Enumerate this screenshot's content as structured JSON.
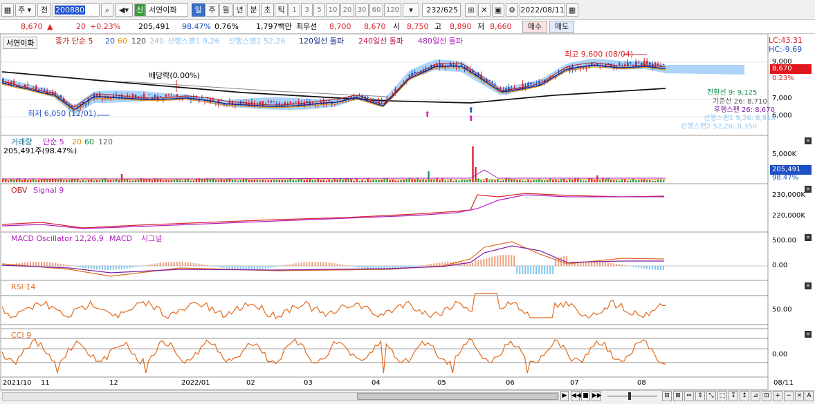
{
  "toolbar": {
    "period_combo": "주",
    "prev_label": "전",
    "code": "200880",
    "flag": "신",
    "stock_name": "서연이화",
    "tf": [
      "일",
      "주",
      "월",
      "년",
      "분",
      "초",
      "틱"
    ],
    "nums": [
      "1",
      "3",
      "5",
      "10",
      "20",
      "30",
      "60",
      "120"
    ],
    "count": "232/625",
    "date": "2022/08/11"
  },
  "quote": {
    "price": "8,670",
    "change": "20",
    "change_pct": "+0.23%",
    "volume": "205,491",
    "vol_ratio": "98.47%",
    "turnover": "0.76%",
    "amount": "1,797백만",
    "best_ask_label": "최우선",
    "best_ask": "8,700",
    "best_bid": "8,670",
    "open_label": "시",
    "open": "8,750",
    "high_label": "고",
    "high": "8,890",
    "low_label": "저",
    "low": "8,660",
    "buy": "매수",
    "sell": "매도"
  },
  "price_pane": {
    "tab": "서연이화",
    "legend": [
      "종가 단순 5",
      "20",
      "60",
      "120",
      "240",
      "선행스팬1 9,26",
      "선행스팬2 52,26",
      "120일선 돌파",
      "240일선 돌파",
      "480일선 돌파"
    ],
    "lc": "LC:43.31",
    "hc": "HC:-9.69",
    "axis": [
      "9,000",
      "8,670",
      "0.23%",
      "7,000",
      "6,000"
    ],
    "dividend": "배당락(0.00%)",
    "low_note": "최저 6,050 (12/01)",
    "high_note": "최고 9,600 (08/04)",
    "ichimoku": [
      "전환선 9: 9,125",
      "기준선 26: 8,710",
      "후행스팬 26: 8,670",
      "선행스팬1 9,26: 8,918",
      "선행스팬2 52,26: 8,350"
    ]
  },
  "volume_pane": {
    "legend": [
      "거래량",
      "단순 5",
      "20",
      "60",
      "120"
    ],
    "sub": "205,491주(98.47%)",
    "axis": [
      "5,000K",
      "205,491",
      "98.47%"
    ]
  },
  "obv_pane": {
    "legend": [
      "OBV",
      "Signal 9"
    ],
    "axis": [
      "230,000K",
      "220,000K"
    ]
  },
  "macd_pane": {
    "legend": [
      "MACD Oscillator 12,26,9",
      "MACD",
      "시그널"
    ],
    "axis": [
      "500.00",
      "0.00"
    ]
  },
  "rsi_pane": {
    "legend": [
      "RSI 14"
    ],
    "axis": [
      "50.00"
    ]
  },
  "cci_pane": {
    "legend": [
      "CCI 9"
    ],
    "axis": [
      "0.00"
    ]
  },
  "xaxis": [
    "2021/10",
    "11",
    "12",
    "2022/01",
    "02",
    "03",
    "04",
    "05",
    "06",
    "07",
    "08"
  ],
  "xaxis_right": "08/11",
  "colors": {
    "up": "#d8242a",
    "down": "#1f4fc4",
    "cloud": "#8fc6f5"
  }
}
